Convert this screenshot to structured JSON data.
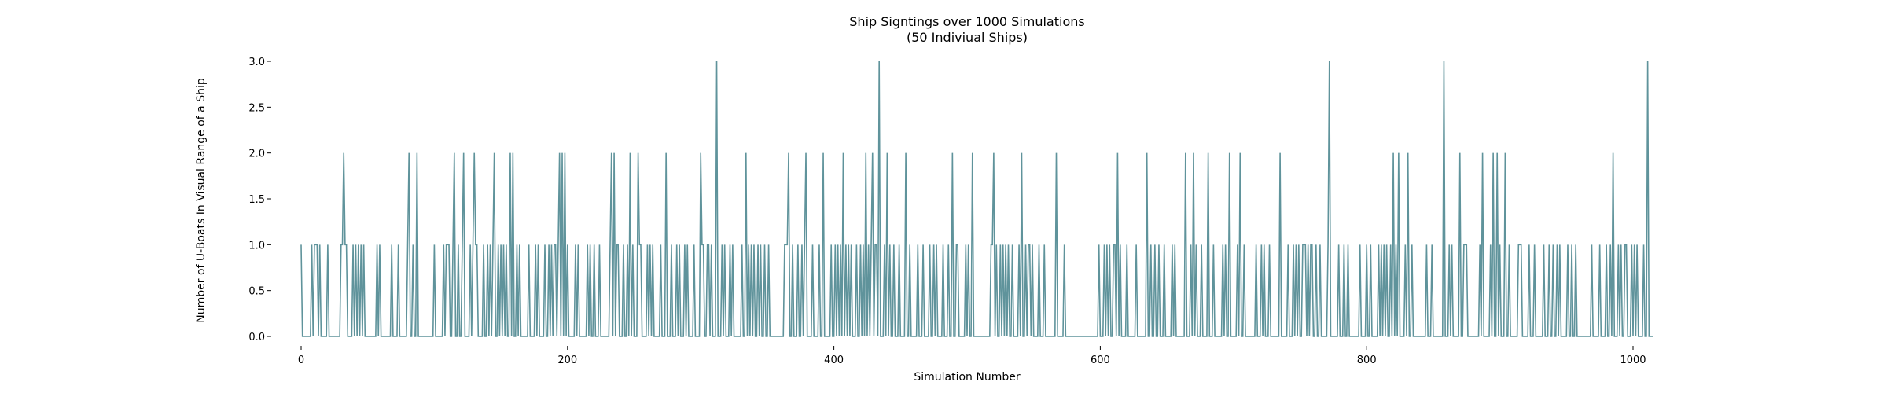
{
  "chart_data": {
    "type": "line",
    "title": "Ship Signtings over 1000 Simulations",
    "subtitle": "(50 Indiviual Ships)",
    "xlabel": "Simulation Number",
    "ylabel": "Number of U-Boats In Visual Range of a Ship",
    "xlim": [
      0,
      1000
    ],
    "ylim": [
      0,
      3.0
    ],
    "xticks": [
      0,
      200,
      400,
      600,
      800,
      1000
    ],
    "xtick_labels": [
      "0",
      "200",
      "400",
      "600",
      "800",
      "1000"
    ],
    "yticks": [
      0.0,
      0.5,
      1.0,
      1.5,
      2.0,
      2.5,
      3.0
    ],
    "ytick_labels": [
      "0.0",
      "0.5",
      "1.0",
      "1.5",
      "2.0",
      "2.5",
      "3.0"
    ],
    "grid": false,
    "line_color": "#5f939b",
    "series": [
      {
        "name": "",
        "values": [
          1,
          0,
          0,
          0,
          0,
          0,
          0,
          0,
          1,
          0,
          1,
          1,
          1,
          0,
          1,
          0,
          0,
          0,
          0,
          0,
          1,
          0,
          0,
          0,
          0,
          0,
          0,
          0,
          0,
          0,
          1,
          1,
          2,
          1,
          1,
          0,
          0,
          0,
          0,
          1,
          0,
          1,
          0,
          1,
          0,
          1,
          0,
          1,
          0,
          0,
          0,
          0,
          0,
          0,
          0,
          0,
          0,
          1,
          0,
          1,
          0,
          0,
          0,
          0,
          0,
          0,
          0,
          0,
          1,
          0,
          0,
          0,
          0,
          1,
          0,
          0,
          0,
          0,
          0,
          0,
          1,
          2,
          0,
          0,
          1,
          0,
          0,
          2,
          0,
          0,
          0,
          0,
          0,
          0,
          0,
          0,
          0,
          0,
          0,
          0,
          1,
          0,
          0,
          0,
          0,
          0,
          0,
          1,
          0,
          1,
          1,
          1,
          0,
          0,
          1,
          2,
          0,
          0,
          1,
          0,
          0,
          1,
          2,
          0,
          0,
          0,
          0,
          1,
          0,
          1,
          2,
          1,
          1,
          0,
          0,
          0,
          0,
          1,
          0,
          0,
          1,
          0,
          1,
          0,
          1,
          2,
          0,
          0,
          1,
          0,
          1,
          0,
          1,
          0,
          1,
          0,
          0,
          2,
          0,
          2,
          0,
          0,
          1,
          0,
          1,
          0,
          0,
          0,
          0,
          0,
          0,
          1,
          0,
          0,
          0,
          0,
          1,
          0,
          1,
          0,
          0,
          0,
          0,
          1,
          0,
          0,
          1,
          0,
          1,
          0,
          1,
          1,
          0,
          1,
          2,
          0,
          2,
          0,
          2,
          0,
          1,
          0,
          0,
          0,
          0,
          0,
          1,
          0,
          1,
          0,
          0,
          0,
          0,
          0,
          0,
          1,
          0,
          1,
          0,
          0,
          1,
          0,
          0,
          0,
          1,
          0,
          0,
          0,
          0,
          0,
          0,
          0,
          1,
          2,
          0,
          2,
          0,
          1,
          1,
          0,
          0,
          0,
          1,
          0,
          0,
          1,
          0,
          2,
          0,
          1,
          0,
          0,
          0,
          2,
          1,
          1,
          0,
          0,
          0,
          0,
          1,
          0,
          1,
          0,
          1,
          0,
          0,
          0,
          0,
          0,
          1,
          0,
          0,
          0,
          2,
          0,
          0,
          0,
          1,
          0,
          0,
          0,
          1,
          0,
          1,
          0,
          0,
          0,
          1,
          0,
          1,
          0,
          0,
          0,
          0,
          1,
          0,
          0,
          0,
          0,
          2,
          1,
          1,
          0,
          0,
          1,
          1,
          0,
          1,
          0,
          0,
          0,
          3,
          0,
          0,
          0,
          1,
          0,
          1,
          0,
          0,
          0,
          1,
          0,
          1,
          0,
          0,
          0,
          0,
          0,
          0,
          1,
          0,
          0,
          2,
          0,
          1,
          0,
          1,
          0,
          1,
          0,
          0,
          1,
          0,
          1,
          0,
          0,
          1,
          0,
          0,
          1,
          0,
          0,
          0,
          0,
          0,
          0,
          0,
          0,
          0,
          0,
          0,
          1,
          1,
          1,
          2,
          0,
          0,
          1,
          0,
          0,
          0,
          1,
          0,
          0,
          1,
          0,
          1,
          2,
          0,
          0,
          0,
          0,
          1,
          0,
          0,
          0,
          0,
          1,
          0,
          0,
          2,
          0,
          0,
          0,
          0,
          0,
          1,
          0,
          0,
          1,
          0,
          1,
          0,
          1,
          0,
          2,
          0,
          1,
          0,
          1,
          0,
          1,
          0,
          0,
          0,
          1,
          0,
          0,
          1,
          0,
          1,
          0,
          2,
          0,
          1,
          0,
          1,
          2,
          0,
          1,
          1,
          0,
          3,
          0,
          0,
          0,
          1,
          0,
          2,
          0,
          1,
          0,
          0,
          1,
          0,
          0,
          0,
          1,
          0,
          0,
          0,
          0,
          2,
          0,
          0,
          1,
          0,
          0,
          0,
          0,
          0,
          1,
          0,
          0,
          0,
          1,
          0,
          0,
          0,
          0,
          1,
          0,
          0,
          1,
          0,
          1,
          0,
          0,
          0,
          0,
          1,
          0,
          0,
          0,
          1,
          0,
          0,
          2,
          0,
          0,
          1,
          1,
          0,
          0,
          0,
          0,
          0,
          1,
          0,
          1,
          0,
          0,
          2,
          0,
          0,
          0,
          0,
          0,
          0,
          0,
          0,
          0,
          0,
          0,
          0,
          0,
          1,
          1,
          2,
          0,
          1,
          0,
          0,
          1,
          0,
          1,
          0,
          1,
          0,
          1,
          0,
          0,
          1,
          0,
          0,
          0,
          0,
          1,
          0,
          2,
          0,
          0,
          1,
          0,
          1,
          1,
          0,
          1,
          0,
          0,
          0,
          0,
          1,
          0,
          0,
          0,
          1,
          0,
          0,
          0,
          0,
          0,
          0,
          0,
          0,
          2,
          0,
          0,
          0,
          0,
          0,
          1,
          0,
          0,
          0,
          0,
          0,
          0,
          0,
          0,
          0,
          0,
          0,
          0,
          0,
          0,
          0,
          0,
          0,
          0,
          0,
          0,
          0,
          0,
          0,
          0,
          0,
          1,
          0,
          0,
          0,
          1,
          0,
          1,
          0,
          1,
          0,
          0,
          1,
          1,
          0,
          2,
          0,
          1,
          0,
          0,
          0,
          0,
          1,
          0,
          0,
          0,
          0,
          0,
          0,
          1,
          0,
          0,
          0,
          0,
          0,
          0,
          0,
          2,
          0,
          0,
          1,
          0,
          0,
          1,
          0,
          0,
          1,
          0,
          0,
          0,
          1,
          0,
          0,
          0,
          0,
          0,
          1,
          0,
          1,
          0,
          0,
          0,
          0,
          0,
          0,
          0,
          2,
          0,
          0,
          0,
          1,
          0,
          2,
          0,
          1,
          0,
          0,
          0,
          1,
          0,
          0,
          0,
          0,
          2,
          0,
          0,
          0,
          1,
          0,
          0,
          0,
          0,
          0,
          0,
          1,
          0,
          1,
          0,
          0,
          2,
          0,
          0,
          0,
          0,
          0,
          1,
          0,
          2,
          0,
          0,
          1,
          0,
          0,
          0,
          0,
          0,
          0,
          0,
          0,
          1,
          0,
          0,
          0,
          1,
          0,
          1,
          0,
          0,
          0,
          1,
          0,
          0,
          0,
          0,
          0,
          0,
          0,
          2,
          0,
          0,
          0,
          0,
          0,
          1,
          0,
          0,
          0,
          1,
          0,
          1,
          0,
          1,
          0,
          0,
          1,
          1,
          1,
          0,
          1,
          0,
          1,
          1,
          0,
          0,
          1,
          0,
          0,
          1,
          0,
          0,
          0,
          0,
          0,
          1,
          3,
          0,
          0,
          0,
          0,
          0,
          0,
          1,
          0,
          0,
          0,
          1,
          0,
          0,
          1,
          0,
          0,
          0,
          0,
          0,
          0,
          0,
          0,
          1,
          0,
          0,
          0,
          0,
          1,
          0,
          0,
          1,
          0,
          0,
          0,
          0,
          0,
          1,
          0,
          1,
          0,
          1,
          0,
          1,
          0,
          0,
          1,
          0,
          2,
          0,
          1,
          0,
          2,
          0,
          0,
          0,
          0,
          1,
          0,
          2,
          0,
          0,
          1,
          0,
          0,
          0,
          0,
          0,
          0,
          0,
          0,
          0,
          0,
          1,
          0,
          0,
          0,
          1,
          0,
          0,
          0,
          0,
          0,
          0,
          0,
          0,
          3,
          0,
          0,
          0,
          1,
          0,
          1,
          0,
          0,
          0,
          0,
          0,
          2,
          0,
          0,
          1,
          1,
          1,
          0,
          0,
          0,
          0,
          0,
          0,
          0,
          0,
          0,
          1,
          0,
          2,
          0,
          0,
          0,
          0,
          0,
          1,
          0,
          2,
          0,
          0,
          2,
          0,
          1,
          0,
          0,
          0,
          2,
          0,
          0,
          1,
          0,
          0,
          0,
          0,
          0,
          0,
          1,
          1,
          1,
          0,
          0,
          0,
          0,
          0,
          1,
          0,
          0,
          0,
          1,
          0,
          0,
          0,
          0,
          0,
          0,
          1,
          0,
          0,
          0,
          1,
          0,
          0,
          1,
          0,
          0,
          1,
          0,
          1,
          0,
          0,
          0,
          0,
          0,
          1,
          0,
          0,
          1,
          0,
          0,
          1,
          0,
          0,
          0,
          0,
          0,
          0,
          0,
          0,
          0,
          0,
          0,
          1,
          0,
          0,
          0,
          0,
          0,
          1,
          0,
          0,
          0,
          0,
          1,
          0,
          0,
          1,
          0,
          2,
          0,
          0,
          0,
          1,
          0,
          1,
          0,
          0,
          1,
          1,
          0,
          0,
          0,
          1,
          0,
          1,
          0,
          1,
          0,
          0,
          0,
          0,
          1,
          0,
          0,
          3,
          0,
          0,
          0,
          0
        ]
      }
    ]
  }
}
